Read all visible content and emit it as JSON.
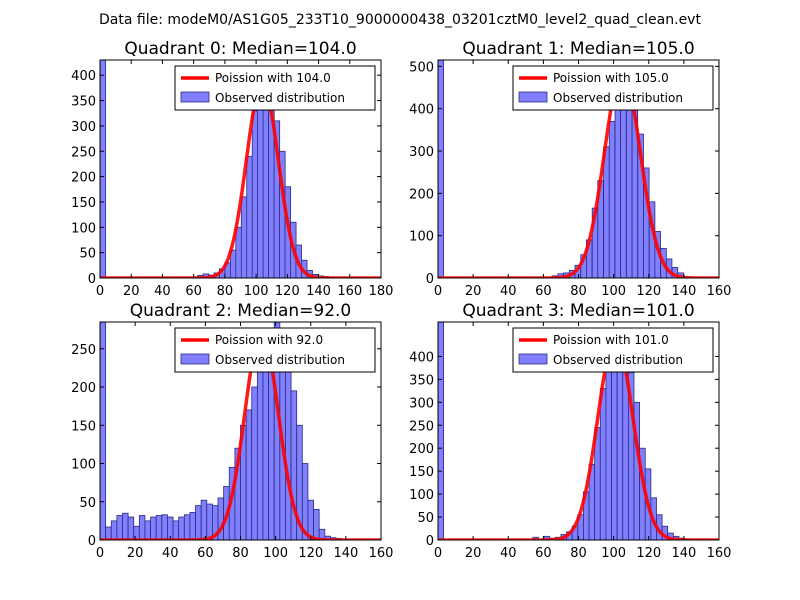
{
  "suptitle": "Data file: modeM0/AS1G05_233T10_9000000438_03201cztM0_level2_quad_clean.evt",
  "colors": {
    "bar_fill": "#8080ff",
    "bar_edge": "#2a2a80",
    "curve": "#ff0000",
    "axes": "#000000",
    "legend_edge": "#000000"
  },
  "chart_data": [
    {
      "type": "bar",
      "title": "Quadrant 0: Median=104.0",
      "xlabel": "",
      "ylabel": "",
      "xlim": [
        0,
        180
      ],
      "ylim": [
        0,
        430
      ],
      "xticks": [
        0,
        20,
        40,
        60,
        80,
        100,
        120,
        140,
        160,
        180
      ],
      "yticks": [
        0,
        50,
        100,
        150,
        200,
        250,
        300,
        350,
        400
      ],
      "bin_width": 3.6,
      "bins": [
        [
          0,
          430
        ],
        [
          62.5,
          5
        ],
        [
          66,
          8
        ],
        [
          69.5,
          6
        ],
        [
          73,
          10
        ],
        [
          76.5,
          18
        ],
        [
          80,
          30
        ],
        [
          83.5,
          55
        ],
        [
          87,
          100
        ],
        [
          90.5,
          160
        ],
        [
          94,
          240
        ],
        [
          97.5,
          330
        ],
        [
          101,
          370
        ],
        [
          104.5,
          380
        ],
        [
          108,
          365
        ],
        [
          111.5,
          310
        ],
        [
          115,
          250
        ],
        [
          118.5,
          180
        ],
        [
          122,
          110
        ],
        [
          125.5,
          65
        ],
        [
          129,
          35
        ],
        [
          132.5,
          15
        ],
        [
          136,
          7
        ],
        [
          139.5,
          4
        ],
        [
          143,
          3
        ]
      ],
      "series": [
        {
          "name": "Poission with 104.0",
          "type": "line",
          "mean": 104.0,
          "peak": 385,
          "sigma": 10.2
        },
        {
          "name": "Observed distribution",
          "type": "bar"
        }
      ],
      "legend": "top-right"
    },
    {
      "type": "bar",
      "title": "Quadrant 1: Median=105.0",
      "xlabel": "",
      "ylabel": "",
      "xlim": [
        0,
        160
      ],
      "ylim": [
        0,
        515
      ],
      "xticks": [
        0,
        20,
        40,
        60,
        80,
        100,
        120,
        140,
        160
      ],
      "yticks": [
        0,
        100,
        200,
        300,
        400,
        500
      ],
      "bin_width": 3.2,
      "bins": [
        [
          0,
          515
        ],
        [
          65,
          5
        ],
        [
          68.3,
          10
        ],
        [
          71.5,
          12
        ],
        [
          74.8,
          18
        ],
        [
          78,
          30
        ],
        [
          81.3,
          55
        ],
        [
          84.5,
          90
        ],
        [
          87.8,
          165
        ],
        [
          91,
          230
        ],
        [
          94.3,
          310
        ],
        [
          97.5,
          370
        ],
        [
          100.8,
          455
        ],
        [
          104,
          470
        ],
        [
          107.3,
          445
        ],
        [
          110.5,
          400
        ],
        [
          113.8,
          340
        ],
        [
          117,
          260
        ],
        [
          120.3,
          180
        ],
        [
          123.5,
          110
        ],
        [
          126.8,
          70
        ],
        [
          130,
          45
        ],
        [
          133.3,
          25
        ],
        [
          136.5,
          12
        ]
      ],
      "series": [
        {
          "name": "Poission with 105.0",
          "type": "line",
          "mean": 105.0,
          "peak": 490,
          "sigma": 10.2
        },
        {
          "name": "Observed distribution",
          "type": "bar"
        }
      ],
      "legend": "top-right"
    },
    {
      "type": "bar",
      "title": "Quadrant 2: Median=92.0",
      "xlabel": "",
      "ylabel": "",
      "xlim": [
        0,
        160
      ],
      "ylim": [
        0,
        285
      ],
      "xticks": [
        0,
        20,
        40,
        60,
        80,
        100,
        120,
        140,
        160
      ],
      "yticks": [
        0,
        50,
        100,
        150,
        200,
        250
      ],
      "bin_width": 3.2,
      "bins": [
        [
          0,
          285
        ],
        [
          3.2,
          17
        ],
        [
          6.4,
          25
        ],
        [
          9.6,
          32
        ],
        [
          12.8,
          35
        ],
        [
          16,
          30
        ],
        [
          19.2,
          18
        ],
        [
          22.4,
          32
        ],
        [
          25.6,
          25
        ],
        [
          28.8,
          30
        ],
        [
          32,
          32
        ],
        [
          35.2,
          33
        ],
        [
          38.4,
          30
        ],
        [
          41.6,
          25
        ],
        [
          44.8,
          30
        ],
        [
          48,
          33
        ],
        [
          51.2,
          36
        ],
        [
          54.4,
          45
        ],
        [
          57.6,
          52
        ],
        [
          60.8,
          47
        ],
        [
          64,
          45
        ],
        [
          67.2,
          55
        ],
        [
          70.4,
          70
        ],
        [
          73.6,
          95
        ],
        [
          76.8,
          120
        ],
        [
          80,
          150
        ],
        [
          83.2,
          170
        ],
        [
          86.4,
          200
        ],
        [
          89.6,
          225
        ],
        [
          92.8,
          238
        ],
        [
          96,
          265
        ],
        [
          99.2,
          290
        ],
        [
          102.4,
          255
        ],
        [
          105.6,
          255
        ],
        [
          108.8,
          195
        ],
        [
          112,
          150
        ],
        [
          115.2,
          100
        ],
        [
          118.4,
          52
        ],
        [
          121.6,
          40
        ],
        [
          124.8,
          14
        ],
        [
          128,
          5
        ],
        [
          131.2,
          3
        ],
        [
          134.4,
          2
        ]
      ],
      "series": [
        {
          "name": "Poission with 92.0",
          "type": "line",
          "mean": 92.0,
          "peak": 272,
          "sigma": 9.6
        },
        {
          "name": "Observed distribution",
          "type": "bar"
        }
      ],
      "legend": "top-right"
    },
    {
      "type": "bar",
      "title": "Quadrant 3: Median=101.0",
      "xlabel": "",
      "ylabel": "",
      "xlim": [
        0,
        160
      ],
      "ylim": [
        0,
        475
      ],
      "xticks": [
        0,
        20,
        40,
        60,
        80,
        100,
        120,
        140,
        160
      ],
      "yticks": [
        0,
        50,
        100,
        150,
        200,
        250,
        300,
        350,
        400
      ],
      "bin_width": 3.2,
      "bins": [
        [
          0,
          475
        ],
        [
          54,
          6
        ],
        [
          60.4,
          8
        ],
        [
          63.6,
          4
        ],
        [
          66.8,
          6
        ],
        [
          70,
          12
        ],
        [
          73.2,
          18
        ],
        [
          76.4,
          30
        ],
        [
          79.6,
          55
        ],
        [
          82.8,
          105
        ],
        [
          86,
          165
        ],
        [
          89.2,
          245
        ],
        [
          92.4,
          330
        ],
        [
          95.6,
          395
        ],
        [
          98.8,
          430
        ],
        [
          102,
          445
        ],
        [
          105.2,
          415
        ],
        [
          108.4,
          365
        ],
        [
          111.6,
          300
        ],
        [
          114.8,
          200
        ],
        [
          118,
          155
        ],
        [
          121.2,
          92
        ],
        [
          124.4,
          55
        ],
        [
          127.6,
          30
        ],
        [
          130.8,
          15
        ],
        [
          134,
          8
        ],
        [
          137.2,
          4
        ],
        [
          140.4,
          2
        ]
      ],
      "series": [
        {
          "name": "Poission with 101.0",
          "type": "line",
          "mean": 101.0,
          "peak": 440,
          "sigma": 10.0
        },
        {
          "name": "Observed distribution",
          "type": "bar"
        }
      ],
      "legend": "top-right"
    }
  ]
}
